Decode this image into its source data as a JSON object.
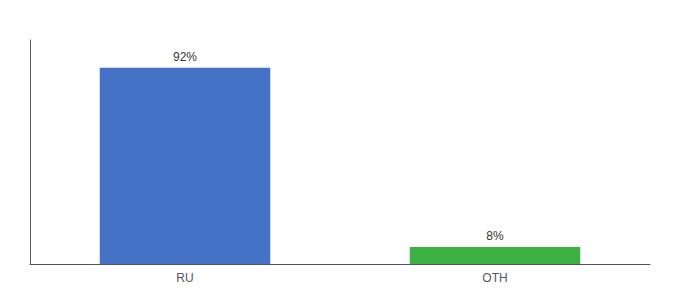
{
  "chart_data": {
    "type": "bar",
    "categories": [
      "RU",
      "OTH"
    ],
    "values": [
      92,
      8
    ],
    "colors": [
      "#4472C4",
      "#3CB043"
    ],
    "value_labels": [
      "92%",
      "8%"
    ],
    "data_labels": true,
    "ylim": [
      0,
      105
    ],
    "yticks": [],
    "tick_labels": "x",
    "grid": false
  }
}
